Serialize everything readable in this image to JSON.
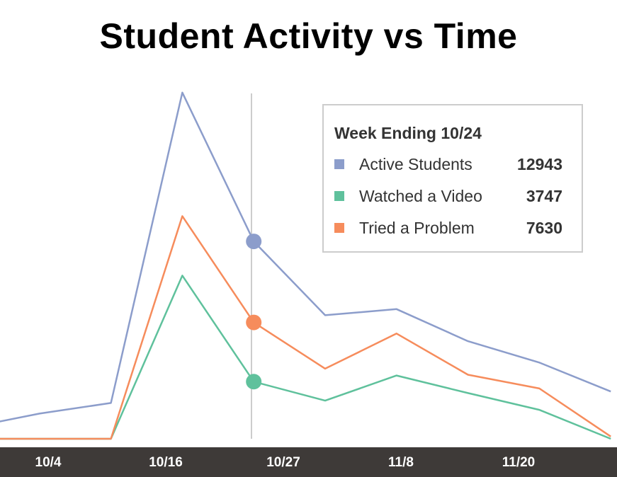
{
  "title": "Student Activity vs Time",
  "colors": {
    "active": "#8c9dcb",
    "video": "#5fc19c",
    "problem": "#f68c5c",
    "axis_bar": "#3e3a38",
    "guide": "#cccccc"
  },
  "legend": {
    "title": "Week Ending 10/24",
    "rows": [
      {
        "name": "Active Students",
        "value": "12943"
      },
      {
        "name": "Watched a Video",
        "value": "3747"
      },
      {
        "name": "Tried a Problem",
        "value": "7630"
      }
    ]
  },
  "chart_data": {
    "type": "line",
    "title": "Student Activity vs Time",
    "x_tick_labels": [
      "10/4",
      "10/16",
      "10/27",
      "11/8",
      "11/20"
    ],
    "hover_week": "10/24",
    "grid": false,
    "legend_placement": "top-right",
    "series": [
      {
        "name": "Active Students",
        "values": [
          720,
          1650,
          2350,
          22700,
          12943,
          8100,
          8500,
          6400,
          5000,
          3100
        ]
      },
      {
        "name": "Watched a Video",
        "values": [
          0,
          0,
          0,
          10700,
          3747,
          2500,
          4150,
          3000,
          1900,
          0
        ]
      },
      {
        "name": "Tried a Problem",
        "values": [
          0,
          0,
          0,
          14600,
          7630,
          4600,
          6900,
          4200,
          3300,
          150
        ]
      }
    ]
  }
}
